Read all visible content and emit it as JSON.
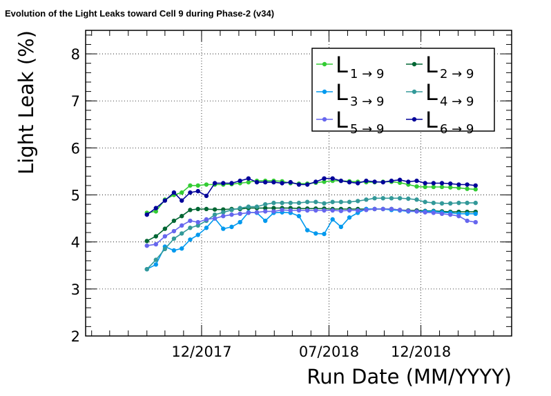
{
  "chart_data": {
    "type": "line",
    "title": "Evolution of the Light Leaks toward Cell 9 during Phase-2 (v34)",
    "xlabel": "Run Date (MM/YYYY)",
    "ylabel": "Light Leak (%)",
    "ylim": [
      2,
      8.5
    ],
    "xlim": [
      "2017-05-22",
      "2019-05-01"
    ],
    "x_ticks": [
      {
        "value": "2017-12-01",
        "label": "12/2017"
      },
      {
        "value": "2018-07-01",
        "label": "07/2018"
      },
      {
        "value": "2018-12-01",
        "label": "12/2018"
      }
    ],
    "y_ticks": [
      {
        "value": 2,
        "label": "2"
      },
      {
        "value": 3,
        "label": "3"
      },
      {
        "value": 4,
        "label": "4"
      },
      {
        "value": 5,
        "label": "5"
      },
      {
        "value": 6,
        "label": "6"
      },
      {
        "value": 7,
        "label": "7"
      },
      {
        "value": 8,
        "label": "8"
      }
    ],
    "grid": true,
    "legend_position": "top-right",
    "x": [
      "2017-09-01",
      "2017-09-16",
      "2017-10-01",
      "2017-10-16",
      "2017-10-29",
      "2017-11-12",
      "2017-11-25",
      "2017-12-09",
      "2017-12-23",
      "2018-01-06",
      "2018-01-20",
      "2018-02-03",
      "2018-02-17",
      "2018-03-03",
      "2018-03-17",
      "2018-03-31",
      "2018-04-14",
      "2018-04-28",
      "2018-05-12",
      "2018-05-26",
      "2018-06-09",
      "2018-06-23",
      "2018-07-07",
      "2018-07-21",
      "2018-08-04",
      "2018-08-18",
      "2018-09-01",
      "2018-09-15",
      "2018-09-29",
      "2018-10-13",
      "2018-10-27",
      "2018-11-10",
      "2018-11-24",
      "2018-12-08",
      "2018-12-22",
      "2019-01-05",
      "2019-01-19",
      "2019-02-02",
      "2019-02-16",
      "2019-03-02"
    ],
    "series": [
      {
        "name": "L1→9",
        "color": "#33cc33",
        "values": [
          4.62,
          4.65,
          4.9,
          5.0,
          5.05,
          5.2,
          5.2,
          5.22,
          5.22,
          5.22,
          5.23,
          5.25,
          5.27,
          5.3,
          5.3,
          5.3,
          5.29,
          5.25,
          5.24,
          5.24,
          5.26,
          5.28,
          5.3,
          5.3,
          5.29,
          5.28,
          5.27,
          5.27,
          5.28,
          5.28,
          5.26,
          5.22,
          5.18,
          5.17,
          5.17,
          5.17,
          5.16,
          5.15,
          5.13,
          5.12
        ]
      },
      {
        "name": "L2→9",
        "color": "#006633",
        "values": [
          4.02,
          4.12,
          4.28,
          4.45,
          4.55,
          4.68,
          4.7,
          4.7,
          4.69,
          4.69,
          4.7,
          4.7,
          4.72,
          4.72,
          4.72,
          4.72,
          4.72,
          4.72,
          4.71,
          4.71,
          4.71,
          4.71,
          4.7,
          4.7,
          4.7,
          4.7,
          4.7,
          4.7,
          4.7,
          4.7,
          4.68,
          4.67,
          4.67,
          4.66,
          4.66,
          4.65,
          4.64,
          4.64,
          4.64,
          4.64
        ]
      },
      {
        "name": "L3→9",
        "color": "#0099ee",
        "values": [
          3.42,
          3.52,
          3.9,
          3.82,
          3.86,
          4.05,
          4.15,
          4.3,
          4.5,
          4.28,
          4.32,
          4.42,
          4.63,
          4.62,
          4.45,
          4.62,
          4.63,
          4.62,
          4.55,
          4.25,
          4.18,
          4.17,
          4.48,
          4.32,
          4.52,
          4.62,
          4.7,
          4.7,
          4.7,
          4.68,
          4.67,
          4.65,
          4.65,
          4.65,
          4.65,
          4.63,
          4.62,
          4.6,
          4.6,
          4.6
        ]
      },
      {
        "name": "L4→9",
        "color": "#339999",
        "values": [
          3.42,
          3.62,
          3.85,
          4.07,
          4.18,
          4.3,
          4.35,
          4.45,
          4.58,
          4.63,
          4.68,
          4.72,
          4.75,
          4.75,
          4.8,
          4.83,
          4.83,
          4.83,
          4.83,
          4.85,
          4.85,
          4.82,
          4.85,
          4.85,
          4.85,
          4.87,
          4.9,
          4.93,
          4.93,
          4.93,
          4.93,
          4.92,
          4.9,
          4.85,
          4.83,
          4.82,
          4.82,
          4.83,
          4.83,
          4.83
        ]
      },
      {
        "name": "L5→9",
        "color": "#6666ee",
        "values": [
          3.92,
          3.95,
          4.12,
          4.23,
          4.35,
          4.45,
          4.42,
          4.48,
          4.5,
          4.55,
          4.58,
          4.6,
          4.62,
          4.63,
          4.65,
          4.65,
          4.68,
          4.67,
          4.67,
          4.67,
          4.67,
          4.67,
          4.67,
          4.66,
          4.67,
          4.67,
          4.68,
          4.7,
          4.7,
          4.7,
          4.68,
          4.66,
          4.65,
          4.63,
          4.62,
          4.6,
          4.58,
          4.55,
          4.45,
          4.42
        ]
      },
      {
        "name": "L6→9",
        "color": "#000099",
        "values": [
          4.58,
          4.72,
          4.88,
          5.05,
          4.88,
          5.05,
          5.08,
          4.98,
          5.25,
          5.25,
          5.25,
          5.3,
          5.35,
          5.27,
          5.27,
          5.27,
          5.25,
          5.27,
          5.22,
          5.22,
          5.28,
          5.35,
          5.35,
          5.3,
          5.27,
          5.25,
          5.3,
          5.28,
          5.27,
          5.3,
          5.32,
          5.28,
          5.3,
          5.25,
          5.25,
          5.25,
          5.24,
          5.22,
          5.22,
          5.2
        ]
      }
    ]
  },
  "legend": [
    {
      "main": "L",
      "sub": "1 → 9"
    },
    {
      "main": "L",
      "sub": "2 → 9"
    },
    {
      "main": "L",
      "sub": "3 → 9"
    },
    {
      "main": "L",
      "sub": "4 → 9"
    },
    {
      "main": "L",
      "sub": "5 → 9"
    },
    {
      "main": "L",
      "sub": "6 → 9"
    }
  ]
}
